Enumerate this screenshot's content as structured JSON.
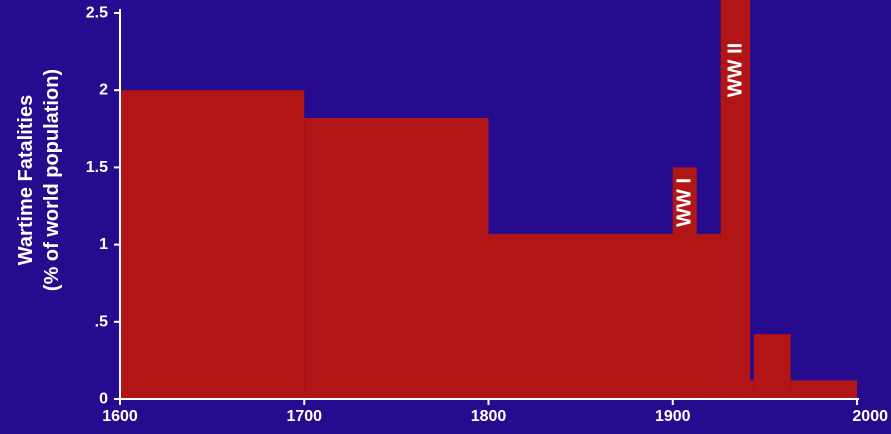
{
  "chart_data": {
    "type": "bar",
    "ylabel_lines": [
      "Wartime Fatalities",
      "(% of world population)"
    ],
    "xlim": [
      1600,
      2000
    ],
    "ylim": [
      0,
      2.5
    ],
    "x_ticks": [
      {
        "value": 1600,
        "label": "1600"
      },
      {
        "value": 1700,
        "label": "1700"
      },
      {
        "value": 1800,
        "label": "1800"
      },
      {
        "value": 1900,
        "label": "1900"
      },
      {
        "value": 2000,
        "label": "2000"
      }
    ],
    "y_ticks": [
      {
        "value": 0,
        "label": "0"
      },
      {
        "value": 0.5,
        "label": ".5"
      },
      {
        "value": 1,
        "label": "1"
      },
      {
        "value": 1.5,
        "label": "1.5"
      },
      {
        "value": 2,
        "label": "2"
      },
      {
        "value": 2.5,
        "label": "2.5"
      }
    ],
    "bars": [
      {
        "x0": 1600,
        "x1": 1700,
        "value": 2.0
      },
      {
        "x0": 1700,
        "x1": 1800,
        "value": 1.82
      },
      {
        "x0": 1800,
        "x1": 1926,
        "value": 1.07
      },
      {
        "x0": 1900,
        "x1": 1913,
        "value": 1.5,
        "label": "WW I"
      },
      {
        "x0": 1926,
        "x1": 1942,
        "value": 2.6,
        "label": "WW II"
      },
      {
        "x0": 1942,
        "x1": 1944,
        "value": 0.12
      },
      {
        "x0": 1944,
        "x1": 1964,
        "value": 0.42
      },
      {
        "x0": 1964,
        "x1": 2000,
        "value": 0.12
      }
    ]
  },
  "colors": {
    "background": "#260b8e",
    "bar": "#b11515",
    "axis": "#ffffff",
    "text": "#ffffff"
  }
}
